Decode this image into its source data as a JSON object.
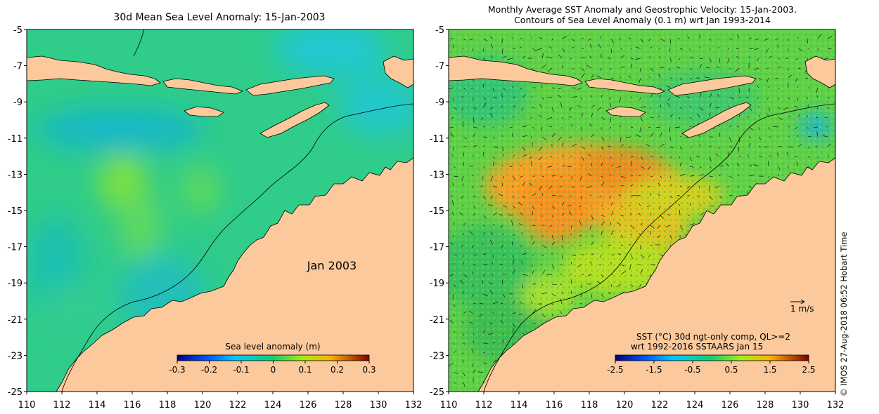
{
  "left_map": {
    "title": "30d Mean Sea Level Anomaly: 15-Jan-2003",
    "label": "Jan 2003",
    "y_ticks": [
      "-5",
      "-7",
      "-9",
      "-11",
      "-13",
      "-15",
      "-17",
      "-19",
      "-21",
      "-23",
      "-25"
    ],
    "x_ticks": [
      "110",
      "112",
      "114",
      "116",
      "118",
      "120",
      "122",
      "124",
      "126",
      "128",
      "130",
      "132"
    ],
    "colorbar": {
      "title": "Sea level anomaly (m)",
      "ticks": [
        "-0.3",
        "-0.2",
        "-0.1",
        "0",
        "0.1",
        "0.2",
        "0.3"
      ]
    }
  },
  "right_map": {
    "title_line1": "Monthly Average SST Anomaly  and Geostrophic Velocity: 15-Jan-2003.",
    "title_line2": "Contours of Sea Level Anomaly (0.1 m) wrt Jan 1993-2014",
    "y_ticks": [
      "-5",
      "-7",
      "-9",
      "-11",
      "-13",
      "-15",
      "-17",
      "-19",
      "-21",
      "-23",
      "-25"
    ],
    "x_ticks": [
      "110",
      "112",
      "114",
      "116",
      "118",
      "120",
      "122",
      "124",
      "126",
      "128",
      "130",
      "132"
    ],
    "scale_label": "1 m/s",
    "colorbar": {
      "title_line1": "SST (°C) 30d ngt-only comp, QL>=2",
      "title_line2": "wrt 1992-2016 SSTAARS Jan 15",
      "ticks": [
        "-2.5",
        "-1.5",
        "-0.5",
        "0.5",
        "1.5",
        "2.5"
      ]
    }
  },
  "credit": "© IMOS 27-Aug-2018 06:52 Hobart Time",
  "colors": {
    "land": "#fbc99b",
    "ocean_base_left": "#2fcc8a",
    "ocean_base_right": "#5fd14a"
  }
}
